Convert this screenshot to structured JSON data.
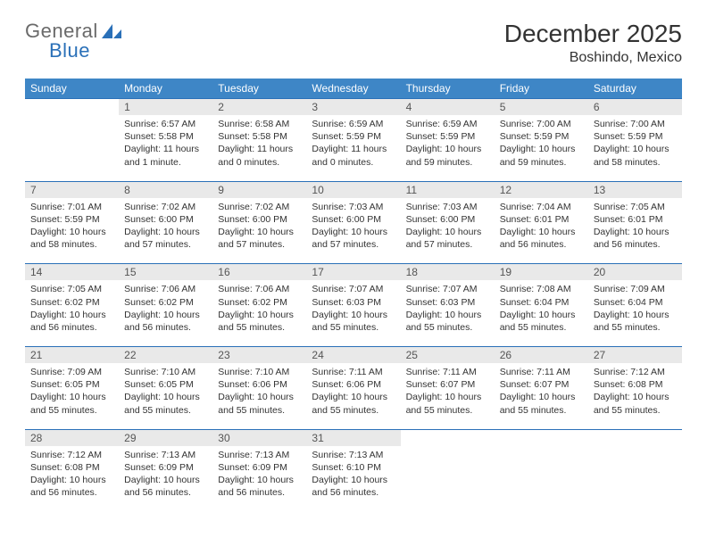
{
  "brand": {
    "general": "General",
    "blue": "Blue"
  },
  "title": "December 2025",
  "location": "Boshindo, Mexico",
  "colors": {
    "header_bg": "#3e86c6",
    "header_text": "#ffffff",
    "rule": "#2a70b8",
    "daynum_bg": "#e9e9e9",
    "body_text": "#333333",
    "logo_gray": "#6a6a6a",
    "logo_blue": "#2a70b8",
    "page_bg": "#ffffff"
  },
  "typography": {
    "title_fontsize": 28,
    "location_fontsize": 16,
    "dow_fontsize": 12,
    "daynum_fontsize": 12,
    "body_fontsize": 10.5
  },
  "days_of_week": [
    "Sunday",
    "Monday",
    "Tuesday",
    "Wednesday",
    "Thursday",
    "Friday",
    "Saturday"
  ],
  "weeks": [
    [
      {
        "num": "",
        "sunrise": "",
        "sunset": "",
        "daylight": ""
      },
      {
        "num": "1",
        "sunrise": "Sunrise: 6:57 AM",
        "sunset": "Sunset: 5:58 PM",
        "daylight": "Daylight: 11 hours and 1 minute."
      },
      {
        "num": "2",
        "sunrise": "Sunrise: 6:58 AM",
        "sunset": "Sunset: 5:58 PM",
        "daylight": "Daylight: 11 hours and 0 minutes."
      },
      {
        "num": "3",
        "sunrise": "Sunrise: 6:59 AM",
        "sunset": "Sunset: 5:59 PM",
        "daylight": "Daylight: 11 hours and 0 minutes."
      },
      {
        "num": "4",
        "sunrise": "Sunrise: 6:59 AM",
        "sunset": "Sunset: 5:59 PM",
        "daylight": "Daylight: 10 hours and 59 minutes."
      },
      {
        "num": "5",
        "sunrise": "Sunrise: 7:00 AM",
        "sunset": "Sunset: 5:59 PM",
        "daylight": "Daylight: 10 hours and 59 minutes."
      },
      {
        "num": "6",
        "sunrise": "Sunrise: 7:00 AM",
        "sunset": "Sunset: 5:59 PM",
        "daylight": "Daylight: 10 hours and 58 minutes."
      }
    ],
    [
      {
        "num": "7",
        "sunrise": "Sunrise: 7:01 AM",
        "sunset": "Sunset: 5:59 PM",
        "daylight": "Daylight: 10 hours and 58 minutes."
      },
      {
        "num": "8",
        "sunrise": "Sunrise: 7:02 AM",
        "sunset": "Sunset: 6:00 PM",
        "daylight": "Daylight: 10 hours and 57 minutes."
      },
      {
        "num": "9",
        "sunrise": "Sunrise: 7:02 AM",
        "sunset": "Sunset: 6:00 PM",
        "daylight": "Daylight: 10 hours and 57 minutes."
      },
      {
        "num": "10",
        "sunrise": "Sunrise: 7:03 AM",
        "sunset": "Sunset: 6:00 PM",
        "daylight": "Daylight: 10 hours and 57 minutes."
      },
      {
        "num": "11",
        "sunrise": "Sunrise: 7:03 AM",
        "sunset": "Sunset: 6:00 PM",
        "daylight": "Daylight: 10 hours and 57 minutes."
      },
      {
        "num": "12",
        "sunrise": "Sunrise: 7:04 AM",
        "sunset": "Sunset: 6:01 PM",
        "daylight": "Daylight: 10 hours and 56 minutes."
      },
      {
        "num": "13",
        "sunrise": "Sunrise: 7:05 AM",
        "sunset": "Sunset: 6:01 PM",
        "daylight": "Daylight: 10 hours and 56 minutes."
      }
    ],
    [
      {
        "num": "14",
        "sunrise": "Sunrise: 7:05 AM",
        "sunset": "Sunset: 6:02 PM",
        "daylight": "Daylight: 10 hours and 56 minutes."
      },
      {
        "num": "15",
        "sunrise": "Sunrise: 7:06 AM",
        "sunset": "Sunset: 6:02 PM",
        "daylight": "Daylight: 10 hours and 56 minutes."
      },
      {
        "num": "16",
        "sunrise": "Sunrise: 7:06 AM",
        "sunset": "Sunset: 6:02 PM",
        "daylight": "Daylight: 10 hours and 55 minutes."
      },
      {
        "num": "17",
        "sunrise": "Sunrise: 7:07 AM",
        "sunset": "Sunset: 6:03 PM",
        "daylight": "Daylight: 10 hours and 55 minutes."
      },
      {
        "num": "18",
        "sunrise": "Sunrise: 7:07 AM",
        "sunset": "Sunset: 6:03 PM",
        "daylight": "Daylight: 10 hours and 55 minutes."
      },
      {
        "num": "19",
        "sunrise": "Sunrise: 7:08 AM",
        "sunset": "Sunset: 6:04 PM",
        "daylight": "Daylight: 10 hours and 55 minutes."
      },
      {
        "num": "20",
        "sunrise": "Sunrise: 7:09 AM",
        "sunset": "Sunset: 6:04 PM",
        "daylight": "Daylight: 10 hours and 55 minutes."
      }
    ],
    [
      {
        "num": "21",
        "sunrise": "Sunrise: 7:09 AM",
        "sunset": "Sunset: 6:05 PM",
        "daylight": "Daylight: 10 hours and 55 minutes."
      },
      {
        "num": "22",
        "sunrise": "Sunrise: 7:10 AM",
        "sunset": "Sunset: 6:05 PM",
        "daylight": "Daylight: 10 hours and 55 minutes."
      },
      {
        "num": "23",
        "sunrise": "Sunrise: 7:10 AM",
        "sunset": "Sunset: 6:06 PM",
        "daylight": "Daylight: 10 hours and 55 minutes."
      },
      {
        "num": "24",
        "sunrise": "Sunrise: 7:11 AM",
        "sunset": "Sunset: 6:06 PM",
        "daylight": "Daylight: 10 hours and 55 minutes."
      },
      {
        "num": "25",
        "sunrise": "Sunrise: 7:11 AM",
        "sunset": "Sunset: 6:07 PM",
        "daylight": "Daylight: 10 hours and 55 minutes."
      },
      {
        "num": "26",
        "sunrise": "Sunrise: 7:11 AM",
        "sunset": "Sunset: 6:07 PM",
        "daylight": "Daylight: 10 hours and 55 minutes."
      },
      {
        "num": "27",
        "sunrise": "Sunrise: 7:12 AM",
        "sunset": "Sunset: 6:08 PM",
        "daylight": "Daylight: 10 hours and 55 minutes."
      }
    ],
    [
      {
        "num": "28",
        "sunrise": "Sunrise: 7:12 AM",
        "sunset": "Sunset: 6:08 PM",
        "daylight": "Daylight: 10 hours and 56 minutes."
      },
      {
        "num": "29",
        "sunrise": "Sunrise: 7:13 AM",
        "sunset": "Sunset: 6:09 PM",
        "daylight": "Daylight: 10 hours and 56 minutes."
      },
      {
        "num": "30",
        "sunrise": "Sunrise: 7:13 AM",
        "sunset": "Sunset: 6:09 PM",
        "daylight": "Daylight: 10 hours and 56 minutes."
      },
      {
        "num": "31",
        "sunrise": "Sunrise: 7:13 AM",
        "sunset": "Sunset: 6:10 PM",
        "daylight": "Daylight: 10 hours and 56 minutes."
      },
      {
        "num": "",
        "sunrise": "",
        "sunset": "",
        "daylight": ""
      },
      {
        "num": "",
        "sunrise": "",
        "sunset": "",
        "daylight": ""
      },
      {
        "num": "",
        "sunrise": "",
        "sunset": "",
        "daylight": ""
      }
    ]
  ]
}
